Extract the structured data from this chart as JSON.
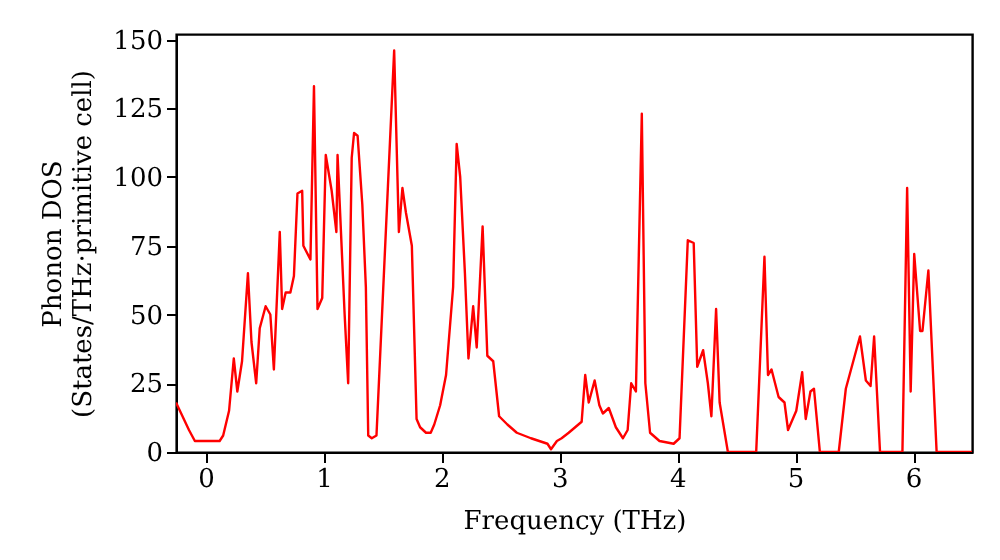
{
  "chart_data": {
    "type": "line",
    "xlabel": "Frequency (THz)",
    "ylabel": "Phonon DOS\n(States/THz·primitive cell)",
    "x": [
      -0.25,
      -0.14,
      -0.09,
      0.12,
      0.15,
      0.2,
      0.24,
      0.27,
      0.31,
      0.36,
      0.39,
      0.43,
      0.46,
      0.51,
      0.55,
      0.58,
      0.63,
      0.65,
      0.68,
      0.72,
      0.75,
      0.78,
      0.82,
      0.83,
      0.89,
      0.92,
      0.95,
      0.99,
      1.02,
      1.07,
      1.11,
      1.12,
      1.18,
      1.21,
      1.24,
      1.26,
      1.29,
      1.33,
      1.36,
      1.38,
      1.41,
      1.45,
      1.6,
      1.64,
      1.67,
      1.7,
      1.75,
      1.79,
      1.82,
      1.87,
      1.91,
      1.94,
      1.99,
      2.04,
      2.1,
      2.13,
      2.16,
      2.2,
      2.23,
      2.27,
      2.3,
      2.35,
      2.39,
      2.44,
      2.49,
      2.56,
      2.64,
      2.76,
      2.9,
      2.93,
      2.98,
      3.02,
      3.08,
      3.19,
      3.22,
      3.25,
      3.3,
      3.34,
      3.37,
      3.42,
      3.48,
      3.54,
      3.58,
      3.61,
      3.65,
      3.7,
      3.73,
      3.77,
      3.85,
      3.97,
      4.02,
      4.09,
      4.14,
      4.17,
      4.22,
      4.26,
      4.29,
      4.33,
      4.36,
      4.43,
      4.67,
      4.74,
      4.77,
      4.8,
      4.86,
      4.91,
      4.94,
      5.01,
      5.06,
      5.09,
      5.13,
      5.16,
      5.21,
      5.37,
      5.43,
      5.55,
      5.6,
      5.64,
      5.67,
      5.72,
      5.91,
      5.95,
      5.98,
      6.01,
      6.06,
      6.08,
      6.13,
      6.2,
      6.5
    ],
    "series": [
      {
        "color": "#ff0000",
        "values": [
          18,
          8,
          4,
          4,
          6,
          15,
          34,
          22,
          33,
          65,
          40,
          25,
          45,
          53,
          50,
          30,
          80,
          52,
          58,
          58,
          64,
          94,
          95,
          75,
          70,
          133,
          52,
          56,
          108,
          95,
          80,
          108,
          50,
          25,
          107,
          116,
          115,
          90,
          60,
          6,
          5,
          6,
          146,
          80,
          96,
          87,
          75,
          12,
          9,
          7,
          7,
          10,
          17,
          28,
          60,
          112,
          100,
          65,
          34,
          53,
          38,
          82,
          35,
          33,
          13,
          10,
          7,
          5,
          3,
          1,
          4,
          5,
          7,
          11,
          28,
          18,
          26,
          17,
          14,
          16,
          9,
          5,
          8,
          25,
          22,
          123,
          25,
          7,
          4,
          3,
          5,
          77,
          76,
          31,
          37,
          25,
          13,
          52,
          18,
          0,
          0,
          71,
          28,
          30,
          20,
          18,
          8,
          15,
          29,
          12,
          22,
          23,
          0,
          0,
          23,
          42,
          26,
          24,
          42,
          0,
          0,
          96,
          22,
          72,
          44,
          44,
          66,
          0,
          0
        ]
      }
    ],
    "xlim": [
      -0.25,
      6.5
    ],
    "xticks": [
      0,
      1,
      2,
      3,
      4,
      5,
      6
    ],
    "ylim": [
      0,
      152
    ],
    "yticks": [
      0,
      25,
      50,
      75,
      100,
      125,
      150
    ],
    "grid": false,
    "line_style": "solid",
    "marker": "none"
  }
}
